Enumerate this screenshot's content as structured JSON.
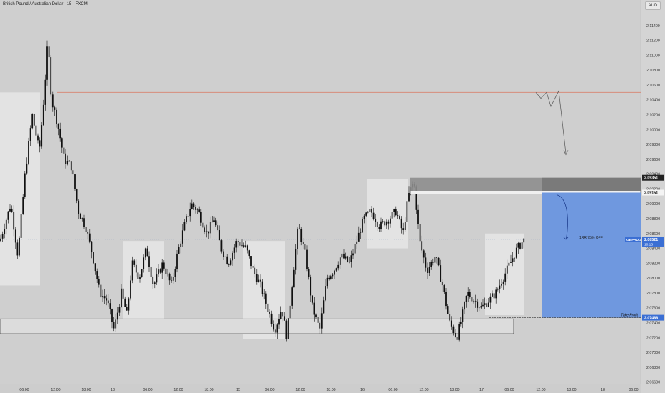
{
  "header": {
    "title": "British Pound / Australian Dollar · 15 · FXCM",
    "currency": "AUD"
  },
  "colors": {
    "background": "#cfcfcf",
    "candle": "#111111",
    "zone": "#e6e6e6",
    "target_zone": "#6f98df",
    "stop_zone": "#7a7a7a",
    "resistance_line": "#d9826f",
    "price_badge": "#3b6fd4"
  },
  "chart_data": {
    "type": "candlestick",
    "symbol": "GBPAUD",
    "ylim": [
      2.065,
      2.116
    ],
    "y_ticks": [
      2.114,
      2.112,
      2.11,
      2.108,
      2.106,
      2.104,
      2.102,
      2.1,
      2.098,
      2.096,
      2.094,
      2.092,
      2.09,
      2.088,
      2.086,
      2.084,
      2.082,
      2.08,
      2.078,
      2.076,
      2.074,
      2.072,
      2.07,
      2.068,
      2.066
    ],
    "y_tick_labels": [
      "2.11400",
      "2.11200",
      "2.11000",
      "2.10800",
      "2.10600",
      "2.10400",
      "2.10200",
      "2.10000",
      "2.09800",
      "2.09600",
      "2.09400",
      "2.09200",
      "2.09000",
      "2.08800",
      "2.08600",
      "2.08400",
      "2.08200",
      "2.08000",
      "2.07800",
      "2.07600",
      "2.07400",
      "2.07200",
      "2.07000",
      "2.06800",
      "2.06600"
    ],
    "x_tick_labels": [
      "06:00",
      "12:00",
      "18:00",
      "13",
      "06:00",
      "12:00",
      "18:00",
      "15",
      "06:00",
      "12:00",
      "18:00",
      "16",
      "06:00",
      "12:00",
      "18:00",
      "17",
      "06:00",
      "12:00",
      "18:00",
      "18",
      "06:00"
    ],
    "price_path": [
      [
        0,
        2.085
      ],
      [
        15,
        2.09
      ],
      [
        25,
        2.083
      ],
      [
        35,
        2.094
      ],
      [
        45,
        2.102
      ],
      [
        55,
        2.097
      ],
      [
        62,
        2.105
      ],
      [
        67,
        2.112
      ],
      [
        72,
        2.104
      ],
      [
        80,
        2.101
      ],
      [
        90,
        2.096
      ],
      [
        100,
        2.095
      ],
      [
        110,
        2.089
      ],
      [
        120,
        2.087
      ],
      [
        130,
        2.083
      ],
      [
        140,
        2.078
      ],
      [
        150,
        2.077
      ],
      [
        160,
        2.073
      ],
      [
        170,
        2.078
      ],
      [
        178,
        2.075
      ],
      [
        185,
        2.082
      ],
      [
        195,
        2.08
      ],
      [
        205,
        2.084
      ],
      [
        215,
        2.079
      ],
      [
        228,
        2.082
      ],
      [
        240,
        2.079
      ],
      [
        248,
        2.083
      ],
      [
        258,
        2.087
      ],
      [
        268,
        2.09
      ],
      [
        278,
        2.089
      ],
      [
        290,
        2.086
      ],
      [
        300,
        2.088
      ],
      [
        310,
        2.084
      ],
      [
        320,
        2.082
      ],
      [
        332,
        2.085
      ],
      [
        345,
        2.084
      ],
      [
        355,
        2.081
      ],
      [
        365,
        2.079
      ],
      [
        375,
        2.076
      ],
      [
        385,
        2.073
      ],
      [
        395,
        2.076
      ],
      [
        402,
        2.072
      ],
      [
        410,
        2.08
      ],
      [
        418,
        2.087
      ],
      [
        428,
        2.083
      ],
      [
        438,
        2.076
      ],
      [
        448,
        2.073
      ],
      [
        458,
        2.08
      ],
      [
        468,
        2.081
      ],
      [
        478,
        2.083
      ],
      [
        490,
        2.082
      ],
      [
        500,
        2.085
      ],
      [
        510,
        2.088
      ],
      [
        520,
        2.089
      ],
      [
        532,
        2.087
      ],
      [
        545,
        2.088
      ],
      [
        555,
        2.089
      ],
      [
        565,
        2.086
      ],
      [
        572,
        2.091
      ],
      [
        580,
        2.093
      ],
      [
        588,
        2.085
      ],
      [
        598,
        2.081
      ],
      [
        610,
        2.083
      ],
      [
        620,
        2.079
      ],
      [
        630,
        2.074
      ],
      [
        640,
        2.072
      ],
      [
        648,
        2.075
      ],
      [
        655,
        2.078
      ],
      [
        665,
        2.077
      ],
      [
        675,
        2.076
      ],
      [
        685,
        2.077
      ],
      [
        695,
        2.078
      ],
      [
        705,
        2.08
      ],
      [
        715,
        2.082
      ],
      [
        725,
        2.084
      ],
      [
        735,
        2.0852
      ]
    ],
    "horizontal_lines": [
      {
        "name": "resistance",
        "price": 2.105
      }
    ],
    "zones": [
      {
        "name": "range-box-1",
        "x1_fraction": 0.0,
        "x2_fraction": 0.0,
        "top": 2.105,
        "bottom": 2.079
      },
      {
        "name": "range-box-2",
        "top": 2.085,
        "bottom": 2.0738
      },
      {
        "name": "range-box-3",
        "top": 2.085,
        "bottom": 2.0718
      },
      {
        "name": "range-box-4",
        "top": 2.0933,
        "bottom": 2.084
      },
      {
        "name": "range-box-5",
        "top": 2.086,
        "bottom": 2.075
      },
      {
        "name": "demand-zone",
        "top": 2.0745,
        "bottom": 2.0725
      }
    ],
    "position": {
      "entry": 2.09151,
      "stop": 2.09351,
      "target": 2.07466,
      "current": 2.08521,
      "current_label": "GBPAUD",
      "countdown": "10:13",
      "annotation": "1RR 75% OFF",
      "take_profit_label": "Take Profit"
    },
    "price_labels": {
      "stop": "2.09351",
      "entry": "2.09151",
      "current": "2.08521",
      "target": "2.07466"
    }
  }
}
